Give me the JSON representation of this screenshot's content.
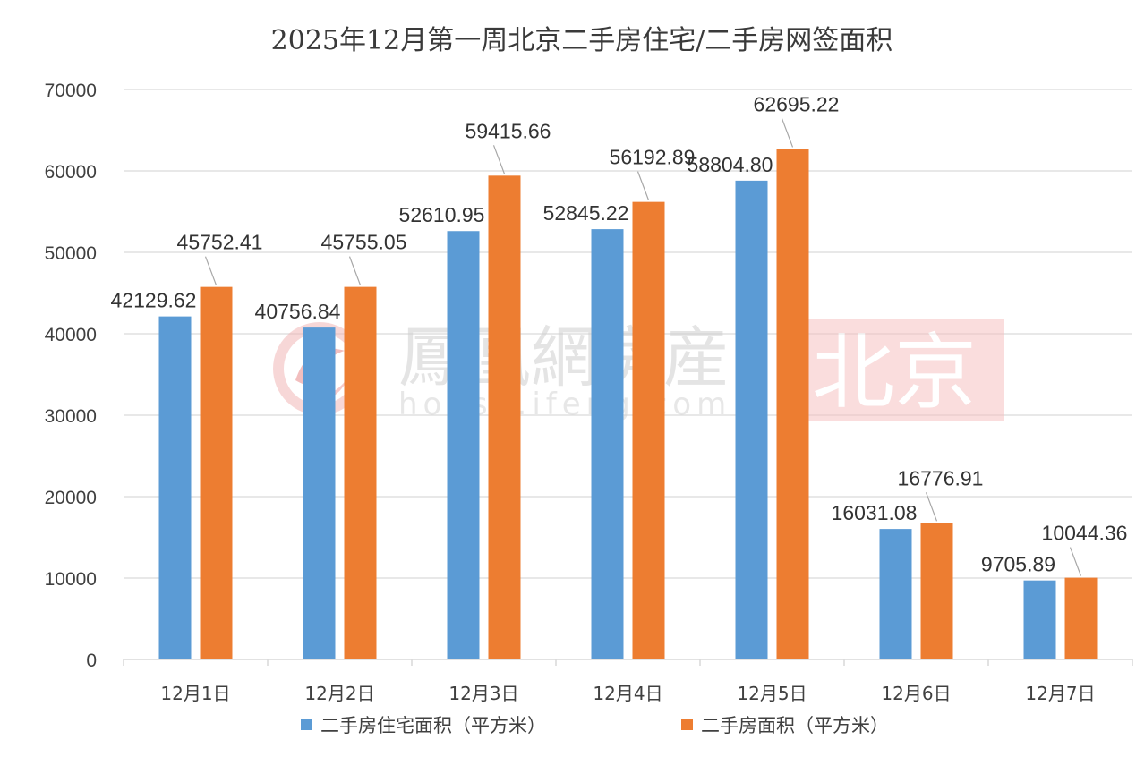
{
  "watermark": {
    "brand": "鳳凰網房産",
    "url": "house.ifeng.com",
    "city": "北京",
    "icon": "ifeng-phoenix-logo-icon",
    "city_bg_color": "#f6c3c3"
  },
  "chart_data": {
    "type": "bar",
    "title": "2025年12月第一周北京二手房住宅/二手房网签面积",
    "categories": [
      "12月1日",
      "12月2日",
      "12月3日",
      "12月4日",
      "12月5日",
      "12月6日",
      "12月7日"
    ],
    "series": [
      {
        "name": "二手房住宅面积（平方米）",
        "color": "#5b9bd5",
        "values": [
          42129.62,
          40756.84,
          52610.95,
          52845.22,
          58804.8,
          16031.08,
          9705.89
        ],
        "labels": [
          "42129.62",
          "40756.84",
          "52610.95",
          "52845.22",
          "58804.80",
          "16031.08",
          "9705.89"
        ]
      },
      {
        "name": "二手房面积（平方米）",
        "color": "#ed7d31",
        "values": [
          45752.41,
          45755.05,
          59415.66,
          56192.89,
          62695.22,
          16776.91,
          10044.36
        ],
        "labels": [
          "45752.41",
          "45755.05",
          "59415.66",
          "56192.89",
          "62695.22",
          "16776.91",
          "10044.36"
        ]
      }
    ],
    "ylim": [
      0,
      70000
    ],
    "yticks": [
      "0",
      "10000",
      "20000",
      "30000",
      "40000",
      "50000",
      "60000",
      "70000"
    ],
    "xlabel": "",
    "ylabel": "",
    "grid": true,
    "legend_position": "bottom"
  }
}
